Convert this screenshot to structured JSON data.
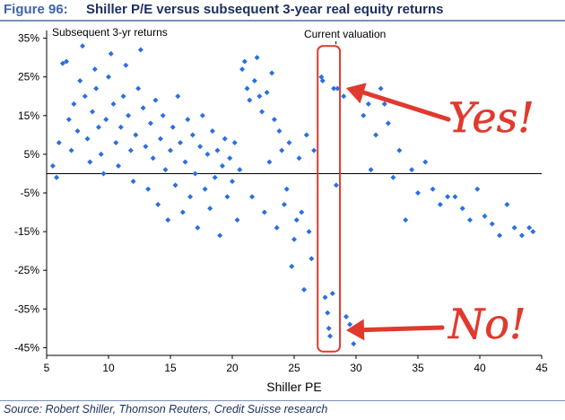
{
  "figure_label": "Figure 96:",
  "figure_title": "Shiller P/E versus subsequent 3-year real equity returns",
  "source": "Source: Robert Shiller, Thomson Reuters, Credit Suisse research",
  "colors": {
    "points": "#2b6fe0",
    "highlight_box": "#e03a2e",
    "arrow": "#e03a2e",
    "title_blue": "#3f63a8",
    "title_navy": "#1b2f5e"
  },
  "annotations": {
    "current_valuation": "Current valuation",
    "yes": "Yes!",
    "no": "No!"
  },
  "chart_data": {
    "type": "scatter",
    "xlabel": "Shiller PE",
    "ylabel": "Subsequent 3-yr returns",
    "xlim": [
      5,
      45
    ],
    "ylim": [
      -47,
      37
    ],
    "xticks": [
      5,
      10,
      15,
      20,
      25,
      30,
      35,
      40,
      45
    ],
    "yticks": [
      35,
      25,
      15,
      5,
      -5,
      -15,
      -25,
      -35,
      -45
    ],
    "ytick_format": "percent",
    "grid": false,
    "highlight_region": {
      "x": [
        26.9,
        28.7
      ],
      "y": [
        -46,
        33
      ]
    },
    "series": [
      {
        "values": [
          [
            5.5,
            2
          ],
          [
            5.8,
            -1
          ],
          [
            6.0,
            8
          ],
          [
            6.3,
            28.5
          ],
          [
            6.6,
            29
          ],
          [
            6.8,
            14
          ],
          [
            7.0,
            6
          ],
          [
            7.2,
            18
          ],
          [
            7.5,
            11
          ],
          [
            7.7,
            24
          ],
          [
            7.9,
            33
          ],
          [
            8.1,
            20
          ],
          [
            8.3,
            9
          ],
          [
            8.5,
            3
          ],
          [
            8.7,
            16
          ],
          [
            8.9,
            27
          ],
          [
            9.0,
            22
          ],
          [
            9.2,
            12
          ],
          [
            9.4,
            5
          ],
          [
            9.6,
            0
          ],
          [
            9.8,
            14
          ],
          [
            10.0,
            25
          ],
          [
            10.2,
            31
          ],
          [
            10.4,
            18
          ],
          [
            10.6,
            8
          ],
          [
            10.8,
            2
          ],
          [
            11.0,
            12
          ],
          [
            11.2,
            20
          ],
          [
            11.4,
            28
          ],
          [
            11.6,
            15
          ],
          [
            11.8,
            6
          ],
          [
            12.0,
            -2
          ],
          [
            12.2,
            10
          ],
          [
            12.4,
            22
          ],
          [
            12.6,
            32
          ],
          [
            12.8,
            17
          ],
          [
            13.0,
            7
          ],
          [
            13.2,
            -4
          ],
          [
            13.4,
            13
          ],
          [
            13.6,
            4
          ],
          [
            13.8,
            19
          ],
          [
            14.0,
            -8
          ],
          [
            14.2,
            9
          ],
          [
            14.4,
            15
          ],
          [
            14.6,
            1
          ],
          [
            14.8,
            -12
          ],
          [
            15.0,
            6
          ],
          [
            15.2,
            12
          ],
          [
            15.4,
            -3
          ],
          [
            15.6,
            20
          ],
          [
            15.8,
            8
          ],
          [
            16.0,
            -10
          ],
          [
            16.2,
            3
          ],
          [
            16.4,
            14
          ],
          [
            16.6,
            -6
          ],
          [
            16.8,
            10
          ],
          [
            17.0,
            0
          ],
          [
            17.2,
            -14
          ],
          [
            17.4,
            7
          ],
          [
            17.6,
            15
          ],
          [
            17.8,
            -4
          ],
          [
            18.0,
            5
          ],
          [
            18.2,
            -9
          ],
          [
            18.4,
            11
          ],
          [
            18.6,
            -1
          ],
          [
            18.8,
            6
          ],
          [
            19.0,
            -16
          ],
          [
            19.2,
            2
          ],
          [
            19.4,
            9
          ],
          [
            19.6,
            -6
          ],
          [
            19.8,
            4
          ],
          [
            20.0,
            -2
          ],
          [
            20.2,
            8
          ],
          [
            20.4,
            -12
          ],
          [
            20.6,
            1
          ],
          [
            20.8,
            27
          ],
          [
            21.0,
            29
          ],
          [
            21.2,
            22
          ],
          [
            21.4,
            19
          ],
          [
            21.6,
            -6
          ],
          [
            21.8,
            24
          ],
          [
            22.0,
            30
          ],
          [
            22.2,
            20
          ],
          [
            22.4,
            16
          ],
          [
            22.6,
            -10
          ],
          [
            22.8,
            21
          ],
          [
            23.0,
            3
          ],
          [
            23.2,
            26
          ],
          [
            23.4,
            14
          ],
          [
            23.6,
            -14
          ],
          [
            23.8,
            11
          ],
          [
            24.0,
            6
          ],
          [
            24.2,
            -8
          ],
          [
            24.4,
            -4
          ],
          [
            24.6,
            8
          ],
          [
            24.8,
            -24
          ],
          [
            25.0,
            -17
          ],
          [
            25.2,
            -12
          ],
          [
            25.4,
            4
          ],
          [
            25.6,
            -10
          ],
          [
            25.8,
            -30
          ],
          [
            26.0,
            10
          ],
          [
            26.2,
            -15
          ],
          [
            26.4,
            -22
          ],
          [
            26.6,
            6
          ],
          [
            27.2,
            25
          ],
          [
            27.3,
            24
          ],
          [
            27.5,
            -32
          ],
          [
            27.7,
            -36
          ],
          [
            27.8,
            -40
          ],
          [
            27.9,
            -42
          ],
          [
            28.1,
            -31
          ],
          [
            28.2,
            22
          ],
          [
            28.4,
            -3
          ],
          [
            28.5,
            22
          ],
          [
            29.0,
            20
          ],
          [
            29.2,
            -37
          ],
          [
            29.5,
            -39
          ],
          [
            29.8,
            -44
          ],
          [
            30.2,
            -41
          ],
          [
            30.6,
            15
          ],
          [
            31.0,
            18
          ],
          [
            31.2,
            1
          ],
          [
            31.6,
            10
          ],
          [
            32.0,
            22
          ],
          [
            32.3,
            18
          ],
          [
            32.6,
            13
          ],
          [
            33.0,
            -1
          ],
          [
            33.5,
            6
          ],
          [
            34.0,
            -12
          ],
          [
            34.5,
            1
          ],
          [
            35.0,
            -5
          ],
          [
            35.6,
            3
          ],
          [
            36.2,
            -4
          ],
          [
            36.8,
            -8
          ],
          [
            37.4,
            -6
          ],
          [
            38.0,
            -6
          ],
          [
            38.6,
            -9
          ],
          [
            39.2,
            -12
          ],
          [
            39.8,
            -4
          ],
          [
            40.4,
            -11
          ],
          [
            41.0,
            -13
          ],
          [
            41.6,
            -16
          ],
          [
            42.2,
            -8
          ],
          [
            42.8,
            -14
          ],
          [
            43.4,
            -16
          ],
          [
            44.0,
            -14
          ],
          [
            44.3,
            -15
          ]
        ]
      }
    ]
  }
}
